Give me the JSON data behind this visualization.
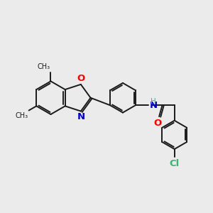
{
  "background_color": "#ebebeb",
  "bond_color": "#1a1a1a",
  "O_color": "#ff0000",
  "N_color": "#0000cc",
  "Cl_color": "#3cb371",
  "H_color": "#5f9ea0",
  "figsize": [
    3.0,
    3.0
  ],
  "dpi": 100,
  "xlim": [
    0,
    12
  ],
  "ylim": [
    0,
    12
  ]
}
